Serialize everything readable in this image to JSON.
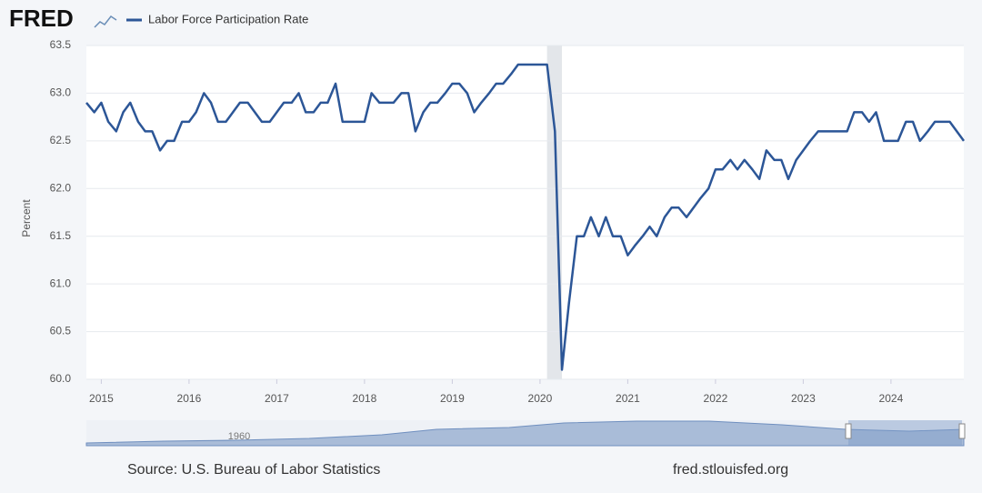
{
  "chart_data": {
    "type": "line",
    "logo": "FRED",
    "y_label": "Percent",
    "source": "Source: U.S. Bureau of Labor Statistics",
    "site": "fred.stlouisfed.org",
    "navigator_label": "1960",
    "xlim": [
      2014.83,
      2024.83
    ],
    "xticks": [
      2015,
      2016,
      2017,
      2018,
      2019,
      2020,
      2021,
      2022,
      2023,
      2024
    ],
    "ylim": [
      60,
      63.5
    ],
    "yticks": [
      {
        "value": 60,
        "label": "60.0"
      },
      60.5,
      {
        "value": 61,
        "label": "61.0"
      },
      61.5,
      {
        "value": 62,
        "label": "62.0"
      },
      62.5,
      {
        "value": 63,
        "label": "63.0"
      },
      63.5
    ],
    "grid": true,
    "recessions": [
      [
        2020.08,
        2020.25
      ]
    ],
    "x": [
      2014.83,
      2014.92,
      2015.0,
      2015.08,
      2015.17,
      2015.25,
      2015.33,
      2015.42,
      2015.5,
      2015.58,
      2015.67,
      2015.75,
      2015.83,
      2015.92,
      2016.0,
      2016.08,
      2016.17,
      2016.25,
      2016.33,
      2016.42,
      2016.5,
      2016.58,
      2016.67,
      2016.75,
      2016.83,
      2016.92,
      2017.0,
      2017.08,
      2017.17,
      2017.25,
      2017.33,
      2017.42,
      2017.5,
      2017.58,
      2017.67,
      2017.75,
      2017.83,
      2017.92,
      2018.0,
      2018.08,
      2018.17,
      2018.25,
      2018.33,
      2018.42,
      2018.5,
      2018.58,
      2018.67,
      2018.75,
      2018.83,
      2018.92,
      2019.0,
      2019.08,
      2019.17,
      2019.25,
      2019.33,
      2019.42,
      2019.5,
      2019.58,
      2019.67,
      2019.75,
      2019.83,
      2019.92,
      2020.0,
      2020.08,
      2020.17,
      2020.25,
      2020.33,
      2020.42,
      2020.5,
      2020.58,
      2020.67,
      2020.75,
      2020.83,
      2020.92,
      2021.0,
      2021.08,
      2021.17,
      2021.25,
      2021.33,
      2021.42,
      2021.5,
      2021.58,
      2021.67,
      2021.75,
      2021.83,
      2021.92,
      2022.0,
      2022.08,
      2022.17,
      2022.25,
      2022.33,
      2022.42,
      2022.5,
      2022.58,
      2022.67,
      2022.75,
      2022.83,
      2022.92,
      2023.0,
      2023.08,
      2023.17,
      2023.25,
      2023.33,
      2023.42,
      2023.5,
      2023.58,
      2023.67,
      2023.75,
      2023.83,
      2023.92,
      2024.0,
      2024.08,
      2024.17,
      2024.25,
      2024.33,
      2024.42,
      2024.5,
      2024.58,
      2024.67,
      2024.75,
      2024.83
    ],
    "series": [
      {
        "name": "Labor Force Participation Rate",
        "color": "#2c5697",
        "values": [
          62.9,
          62.8,
          62.9,
          62.7,
          62.6,
          62.8,
          62.9,
          62.7,
          62.6,
          62.6,
          62.4,
          62.5,
          62.5,
          62.7,
          62.7,
          62.8,
          63.0,
          62.9,
          62.7,
          62.7,
          62.8,
          62.9,
          62.9,
          62.8,
          62.7,
          62.7,
          62.8,
          62.9,
          62.9,
          63.0,
          62.8,
          62.8,
          62.9,
          62.9,
          63.1,
          62.7,
          62.7,
          62.7,
          62.7,
          63.0,
          62.9,
          62.9,
          62.9,
          63.0,
          63.0,
          62.6,
          62.8,
          62.9,
          62.9,
          63.0,
          63.1,
          63.1,
          63.0,
          62.8,
          62.9,
          63.0,
          63.1,
          63.1,
          63.2,
          63.3,
          63.3,
          63.3,
          63.3,
          63.3,
          62.6,
          60.1,
          60.8,
          61.5,
          61.5,
          61.7,
          61.5,
          61.7,
          61.5,
          61.5,
          61.3,
          61.4,
          61.5,
          61.6,
          61.5,
          61.7,
          61.8,
          61.8,
          61.7,
          61.8,
          61.9,
          62.0,
          62.2,
          62.2,
          62.3,
          62.2,
          62.3,
          62.2,
          62.1,
          62.4,
          62.3,
          62.3,
          62.1,
          62.3,
          62.4,
          62.5,
          62.6,
          62.6,
          62.6,
          62.6,
          62.6,
          62.8,
          62.8,
          62.7,
          62.8,
          62.5,
          62.5,
          62.5,
          62.7,
          62.7,
          62.5,
          62.6,
          62.7,
          62.7,
          62.7,
          62.6,
          62.5
        ]
      }
    ]
  }
}
